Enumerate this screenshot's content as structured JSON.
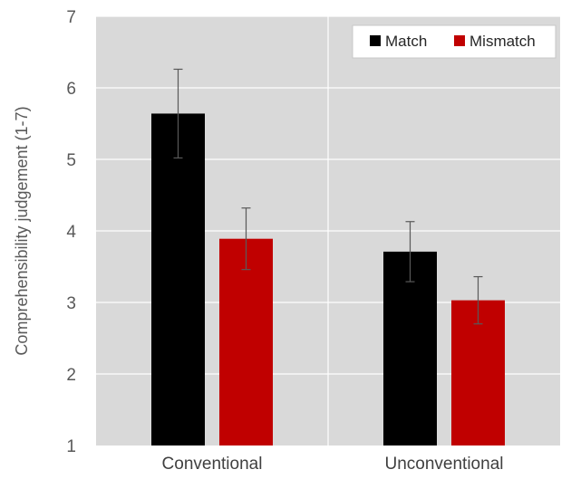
{
  "chart_data": {
    "type": "bar",
    "title": "",
    "xlabel": "",
    "ylabel": "Comprehensibility judgement (1-7)",
    "ylim": [
      1,
      7
    ],
    "yticks": [
      "1",
      "2",
      "3",
      "4",
      "5",
      "6",
      "7"
    ],
    "grid": true,
    "legend_position": "top-right",
    "categories": [
      "Conventional",
      "Unconventional"
    ],
    "series": [
      {
        "name": "Match",
        "color": "#000000",
        "values": [
          5.64,
          3.71
        ],
        "error": [
          0.62,
          0.42
        ]
      },
      {
        "name": "Mismatch",
        "color": "#c00000",
        "values": [
          3.89,
          3.03
        ],
        "error": [
          0.43,
          0.33
        ]
      }
    ],
    "background_color": "#d9d9d9",
    "grid_color": "#ffffff"
  }
}
